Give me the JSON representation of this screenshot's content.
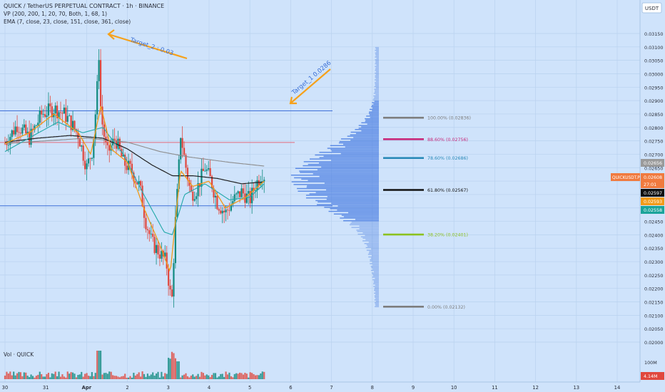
{
  "header": {
    "symbol_line": "QUICK / TetherUS PERPETUAL CONTRACT · 1h · BINANCE",
    "vp_line": "VP (200, 200, 1, 20, 70, Both, 1, 68, 1)",
    "ema_line": "EMA (7, close, 23, close, 151, close, 361, close)",
    "volume_label": "Vol · QUICK"
  },
  "axis": {
    "currency_button": "USDT",
    "price_ticks": [
      "0.03150",
      "0.03100",
      "0.03050",
      "0.03000",
      "0.02950",
      "0.02900",
      "0.02850",
      "0.02800",
      "0.02750",
      "0.02700",
      "0.02650",
      "0.02600",
      "0.02550",
      "0.02500",
      "0.02450",
      "0.02400",
      "0.02350",
      "0.02300",
      "0.02250",
      "0.02200",
      "0.02150",
      "0.02100",
      "0.02050",
      "0.02000"
    ],
    "volume_ticks": [
      "100M"
    ],
    "time_ticks": [
      "30",
      "31",
      "Apr",
      "2",
      "3",
      "4",
      "5",
      "6",
      "7",
      "8",
      "9",
      "10",
      "11",
      "12",
      "13",
      "14"
    ]
  },
  "price_tags": {
    "ticker": "QUICKUSDT.P",
    "gray_tag": "0.02656",
    "last_price": "0.02608",
    "countdown": "27:01",
    "black_tag": "0.02597",
    "orange_tag": "0.02593",
    "teal_tag": "0.02558",
    "volume_tag": "4.14M"
  },
  "colors": {
    "background": "#cfe3fb",
    "grid": "#b9d2ef",
    "up": "#0f8a80",
    "down": "#e0473d",
    "ema_fast": "#f29a18",
    "ema_mid": "#20a8a8",
    "ema_151": "#1f1f1f",
    "ema_361": "#8c8c8c",
    "vp_bar": "#4479e0",
    "target_arrow": "#f6a11a",
    "hline_blue": "#3f6fd8",
    "hline_red": "#e36c7b"
  },
  "annotations": {
    "target_2": "Target_2 : 0.03",
    "target_1": "Target_1 0.0286"
  },
  "fib_levels": [
    {
      "label": "100.00% (0.02836)",
      "price": 0.02836,
      "color": "#7d7d7d"
    },
    {
      "label": "88.60% (0.02756)",
      "price": 0.02756,
      "color": "#c8287a"
    },
    {
      "label": "78.60% (0.02686)",
      "price": 0.02686,
      "color": "#2a8ab8"
    },
    {
      "label": "61.80% (0.02567)",
      "price": 0.02567,
      "color": "#111111"
    },
    {
      "label": "38.20% (0.02401)",
      "price": 0.02401,
      "color": "#8cc11f"
    },
    {
      "label": "0.00% (0.02132)",
      "price": 0.02132,
      "color": "#7d7d7d"
    }
  ],
  "chart_data": {
    "type": "candlestick",
    "interval": "1h",
    "ylim": [
      0.01975,
      0.03165
    ],
    "x_range_days": [
      "Mar 30",
      "Apr 15"
    ],
    "horizontal_lines": [
      {
        "price": 0.02862,
        "color": "blue"
      },
      {
        "price": 0.02744,
        "color": "red"
      },
      {
        "price": 0.02508,
        "color": "blue"
      }
    ],
    "price_path": [
      {
        "t": 0.0,
        "p": 0.0274
      },
      {
        "t": 0.3,
        "p": 0.0281
      },
      {
        "t": 0.6,
        "p": 0.0276
      },
      {
        "t": 0.9,
        "p": 0.0285
      },
      {
        "t": 1.2,
        "p": 0.0287
      },
      {
        "t": 1.45,
        "p": 0.0285
      },
      {
        "t": 1.6,
        "p": 0.0282
      },
      {
        "t": 1.8,
        "p": 0.0277
      },
      {
        "t": 2.0,
        "p": 0.0265
      },
      {
        "t": 2.15,
        "p": 0.0272
      },
      {
        "t": 2.25,
        "p": 0.0292
      },
      {
        "t": 2.3,
        "p": 0.0308
      },
      {
        "t": 2.35,
        "p": 0.0285
      },
      {
        "t": 2.5,
        "p": 0.027
      },
      {
        "t": 2.7,
        "p": 0.0276
      },
      {
        "t": 2.9,
        "p": 0.0267
      },
      {
        "t": 3.1,
        "p": 0.0264
      },
      {
        "t": 3.3,
        "p": 0.0258
      },
      {
        "t": 3.45,
        "p": 0.0245
      },
      {
        "t": 3.6,
        "p": 0.0237
      },
      {
        "t": 3.8,
        "p": 0.0233
      },
      {
        "t": 3.95,
        "p": 0.023
      },
      {
        "t": 4.05,
        "p": 0.0218
      },
      {
        "t": 4.1,
        "p": 0.0216
      },
      {
        "t": 4.15,
        "p": 0.0239
      },
      {
        "t": 4.25,
        "p": 0.0262
      },
      {
        "t": 4.3,
        "p": 0.0278
      },
      {
        "t": 4.4,
        "p": 0.0268
      },
      {
        "t": 4.55,
        "p": 0.0255
      },
      {
        "t": 4.7,
        "p": 0.0257
      },
      {
        "t": 4.9,
        "p": 0.0265
      },
      {
        "t": 5.05,
        "p": 0.026
      },
      {
        "t": 5.2,
        "p": 0.0252
      },
      {
        "t": 5.4,
        "p": 0.0248
      },
      {
        "t": 5.6,
        "p": 0.0253
      },
      {
        "t": 5.8,
        "p": 0.0256
      },
      {
        "t": 6.0,
        "p": 0.0253
      },
      {
        "t": 6.15,
        "p": 0.0259
      },
      {
        "t": 6.3,
        "p": 0.0263
      },
      {
        "t": 6.35,
        "p": 0.0262
      }
    ],
    "ema_7": [
      {
        "t": 0.0,
        "p": 0.0274
      },
      {
        "t": 0.6,
        "p": 0.0278
      },
      {
        "t": 1.2,
        "p": 0.0285
      },
      {
        "t": 1.8,
        "p": 0.0278
      },
      {
        "t": 2.1,
        "p": 0.027
      },
      {
        "t": 2.35,
        "p": 0.0288
      },
      {
        "t": 2.6,
        "p": 0.0272
      },
      {
        "t": 3.0,
        "p": 0.0267
      },
      {
        "t": 3.4,
        "p": 0.025
      },
      {
        "t": 3.8,
        "p": 0.0236
      },
      {
        "t": 4.05,
        "p": 0.0226
      },
      {
        "t": 4.3,
        "p": 0.0264
      },
      {
        "t": 4.6,
        "p": 0.0258
      },
      {
        "t": 5.0,
        "p": 0.026
      },
      {
        "t": 5.4,
        "p": 0.025
      },
      {
        "t": 5.9,
        "p": 0.0254
      },
      {
        "t": 6.35,
        "p": 0.026
      }
    ],
    "ema_23": [
      {
        "t": 0.0,
        "p": 0.0271
      },
      {
        "t": 0.7,
        "p": 0.0277
      },
      {
        "t": 1.3,
        "p": 0.0282
      },
      {
        "t": 1.9,
        "p": 0.0278
      },
      {
        "t": 2.4,
        "p": 0.028
      },
      {
        "t": 2.9,
        "p": 0.027
      },
      {
        "t": 3.4,
        "p": 0.0255
      },
      {
        "t": 3.9,
        "p": 0.0241
      },
      {
        "t": 4.1,
        "p": 0.024
      },
      {
        "t": 4.4,
        "p": 0.0255
      },
      {
        "t": 4.9,
        "p": 0.0259
      },
      {
        "t": 5.5,
        "p": 0.0253
      },
      {
        "t": 6.0,
        "p": 0.0254
      },
      {
        "t": 6.35,
        "p": 0.0259
      }
    ],
    "ema_151": [
      {
        "t": 0.0,
        "p": 0.02745
      },
      {
        "t": 0.8,
        "p": 0.0276
      },
      {
        "t": 1.6,
        "p": 0.0277
      },
      {
        "t": 2.4,
        "p": 0.0276
      },
      {
        "t": 3.0,
        "p": 0.0272
      },
      {
        "t": 3.6,
        "p": 0.0266
      },
      {
        "t": 4.1,
        "p": 0.0262
      },
      {
        "t": 4.6,
        "p": 0.0262
      },
      {
        "t": 5.2,
        "p": 0.0261
      },
      {
        "t": 5.8,
        "p": 0.0259
      },
      {
        "t": 6.35,
        "p": 0.02597
      }
    ],
    "ema_361": [
      {
        "t": 0.0,
        "p": 0.0274
      },
      {
        "t": 1.0,
        "p": 0.0275
      },
      {
        "t": 2.0,
        "p": 0.0276
      },
      {
        "t": 3.0,
        "p": 0.02745
      },
      {
        "t": 3.8,
        "p": 0.0271
      },
      {
        "t": 4.5,
        "p": 0.0269
      },
      {
        "t": 5.5,
        "p": 0.0267
      },
      {
        "t": 6.35,
        "p": 0.02656
      }
    ],
    "volume_profile_peak_price": 0.02608
  }
}
